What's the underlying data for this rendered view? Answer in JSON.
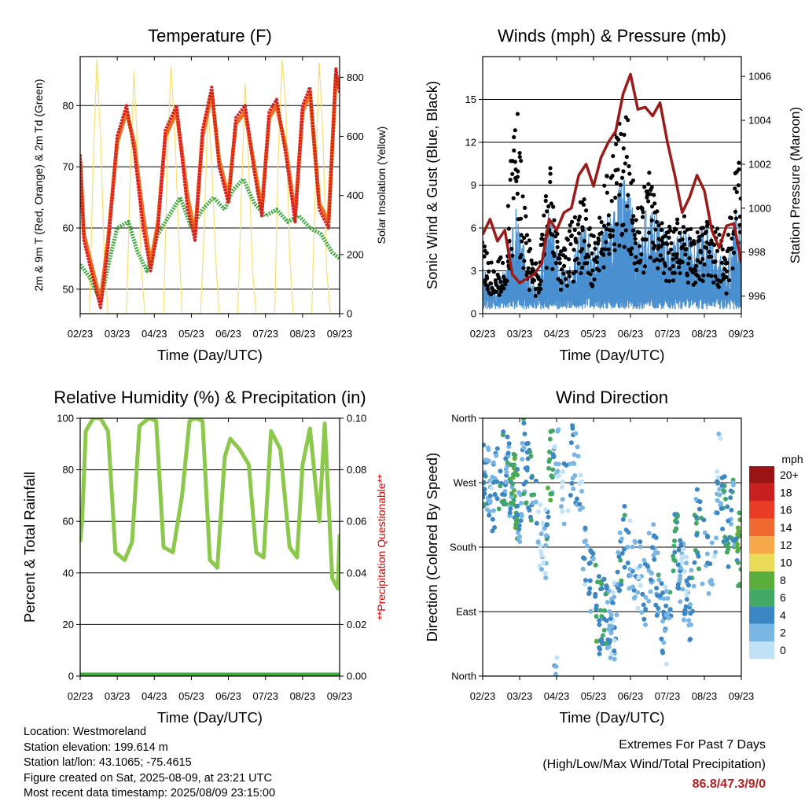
{
  "colors": {
    "temp_2m": "#d42020",
    "temp_9m": "#f07020",
    "dewpoint": "#3faa3f",
    "solar": "#f7e070",
    "wind": "#4a90d0",
    "gust": "#000000",
    "pressure": "#9b1b1b",
    "rh": "#8cc84b",
    "precip": "#3fae3f",
    "note": "#e00000"
  },
  "speed_legend": {
    "unit": "mph",
    "labels": [
      "20+",
      "18",
      "16",
      "14",
      "12",
      "10",
      "8",
      "6",
      "4",
      "2",
      "0"
    ],
    "colors": [
      "#9a1414",
      "#c82020",
      "#e83c24",
      "#f06a30",
      "#f7a848",
      "#eadc58",
      "#5cae3c",
      "#42a866",
      "#3c86c4",
      "#7ab6e4",
      "#bfe2f8"
    ]
  },
  "chart_data": [
    {
      "type": "line",
      "title": "Temperature (F)",
      "xlabel": "Time (Day/UTC)",
      "ylabel": "2m & 9m T (Red, Orange) & 2m Td (Green)",
      "y2label": "Solar Insolation (Yellow)",
      "x_ticks": [
        "02/23",
        "03/23",
        "04/23",
        "05/23",
        "06/23",
        "07/23",
        "08/23",
        "09/23"
      ],
      "y_ticks": [
        50,
        60,
        70,
        80
      ],
      "y2_ticks": [
        0,
        200,
        400,
        600,
        800
      ],
      "ylim": [
        46,
        88
      ],
      "y2lim": [
        0,
        870
      ],
      "grid": "horizontal",
      "series": [
        {
          "name": "2m T",
          "x": [
            0,
            0.1,
            0.3,
            0.55,
            0.75,
            1.0,
            1.25,
            1.45,
            1.7,
            1.9,
            2.1,
            2.3,
            2.6,
            2.9,
            3.1,
            3.3,
            3.55,
            3.75,
            4.0,
            4.2,
            4.45,
            4.7,
            4.9,
            5.1,
            5.3,
            5.55,
            5.8,
            6.0,
            6.2,
            6.45,
            6.7,
            6.9,
            7.0
          ],
          "values": [
            72,
            58,
            53,
            47,
            57,
            75,
            80,
            73,
            60,
            53,
            60,
            76,
            80,
            63,
            58,
            76,
            83,
            70,
            64,
            78,
            80,
            69,
            62,
            79,
            81,
            72,
            61,
            80,
            83,
            63,
            60,
            86,
            82
          ]
        },
        {
          "name": "9m T",
          "x": [
            0,
            0.1,
            0.3,
            0.55,
            0.75,
            1.0,
            1.25,
            1.45,
            1.7,
            1.9,
            2.1,
            2.3,
            2.6,
            2.9,
            3.1,
            3.3,
            3.55,
            3.75,
            4.0,
            4.2,
            4.45,
            4.7,
            4.9,
            5.1,
            5.3,
            5.55,
            5.8,
            6.0,
            6.2,
            6.45,
            6.7,
            6.9,
            7.0
          ],
          "values": [
            71,
            59,
            54,
            48,
            58,
            74,
            79,
            74,
            62,
            54,
            61,
            75,
            79,
            65,
            59,
            75,
            82,
            71,
            65,
            77,
            79,
            70,
            63,
            78,
            80,
            73,
            62,
            79,
            82,
            64,
            61,
            85,
            83
          ]
        },
        {
          "name": "2m Td",
          "x": [
            0,
            0.25,
            0.55,
            0.8,
            1.0,
            1.3,
            1.55,
            1.8,
            2.1,
            2.4,
            2.7,
            3.0,
            3.3,
            3.6,
            3.9,
            4.1,
            4.4,
            4.7,
            5.0,
            5.3,
            5.6,
            5.9,
            6.2,
            6.5,
            6.8,
            7.0
          ],
          "values": [
            54,
            52,
            48,
            55,
            60,
            61,
            56,
            53,
            59,
            62,
            65,
            60,
            63,
            65,
            63,
            66,
            68,
            64,
            62,
            63,
            61,
            62,
            60,
            59,
            56,
            55
          ]
        },
        {
          "name": "Solar",
          "axis": "y2",
          "x": [
            0,
            0.25,
            0.35,
            0.45,
            0.55,
            0.65,
            0.75,
            1.25,
            1.35,
            1.45,
            1.55,
            1.65,
            1.75,
            2.25,
            2.35,
            2.45,
            2.55,
            2.65,
            2.75,
            3.25,
            3.35,
            3.45,
            3.55,
            3.65,
            3.75,
            4.25,
            4.35,
            4.45,
            4.55,
            4.65,
            4.75,
            5.25,
            5.35,
            5.45,
            5.55,
            5.65,
            5.75,
            6.25,
            6.35,
            6.45,
            6.55,
            6.65,
            6.75,
            7.0
          ],
          "values": [
            0,
            0,
            500,
            860,
            600,
            200,
            0,
            0,
            450,
            820,
            550,
            150,
            0,
            0,
            500,
            840,
            620,
            300,
            0,
            0,
            300,
            700,
            500,
            200,
            0,
            0,
            400,
            780,
            500,
            150,
            0,
            0,
            550,
            860,
            700,
            200,
            0,
            0,
            450,
            850,
            600,
            150,
            0,
            0
          ]
        }
      ]
    },
    {
      "type": "line",
      "title": "Winds (mph) & Pressure (mb)",
      "xlabel": "Time (Day/UTC)",
      "ylabel": "Sonic Wind & Gust (Blue, Black)",
      "y2label": "Station Pressure (Maroon)",
      "x_ticks": [
        "02/23",
        "03/23",
        "04/23",
        "05/23",
        "06/23",
        "07/23",
        "08/23",
        "09/23"
      ],
      "y_ticks": [
        0,
        3,
        6,
        9,
        12,
        15
      ],
      "y2_ticks": [
        996,
        998,
        1000,
        1002,
        1004,
        1006
      ],
      "ylim": [
        0,
        18
      ],
      "y2lim": [
        995.2,
        1006.9
      ],
      "grid": "horizontal",
      "series": [
        {
          "name": "Wind",
          "x": [
            0,
            0.3,
            0.6,
            0.9,
            1.2,
            1.5,
            1.8,
            2.1,
            2.4,
            2.7,
            3.0,
            3.3,
            3.6,
            3.9,
            4.2,
            4.5,
            4.8,
            5.1,
            5.4,
            5.7,
            6.0,
            6.3,
            6.6,
            6.9,
            7.0
          ],
          "values": [
            2,
            1,
            2,
            5,
            2,
            1,
            5,
            2,
            2,
            4,
            3,
            4,
            5,
            6,
            3,
            5,
            4,
            3,
            4,
            3,
            4,
            3,
            2,
            5,
            3
          ]
        },
        {
          "name": "Gust",
          "x": [
            0,
            0.3,
            0.6,
            0.9,
            1.2,
            1.5,
            1.8,
            2.1,
            2.4,
            2.7,
            3.0,
            3.3,
            3.6,
            3.9,
            4.2,
            4.5,
            4.8,
            5.1,
            5.4,
            5.7,
            6.0,
            6.3,
            6.6,
            6.9,
            7.0
          ],
          "values": [
            5,
            3,
            4,
            14,
            5,
            3,
            10,
            4,
            6,
            8,
            5,
            8,
            12,
            13,
            7,
            9,
            6,
            6,
            7,
            5,
            6,
            6,
            4,
            12,
            7
          ]
        },
        {
          "name": "Pressure",
          "axis": "y2",
          "x": [
            0,
            0.2,
            0.4,
            0.6,
            0.8,
            1.0,
            1.2,
            1.4,
            1.6,
            1.8,
            2.0,
            2.2,
            2.4,
            2.6,
            2.8,
            3.0,
            3.2,
            3.4,
            3.6,
            3.8,
            4.0,
            4.2,
            4.4,
            4.6,
            4.8,
            5.0,
            5.2,
            5.4,
            5.6,
            5.8,
            6.0,
            6.2,
            6.4,
            6.6,
            6.8,
            7.0
          ],
          "values": [
            998.8,
            999.5,
            998.5,
            999.0,
            997.0,
            996.6,
            996.8,
            997.0,
            997.5,
            999.5,
            999.0,
            999.8,
            1000.0,
            1001.5,
            1002.0,
            1001.0,
            1002.3,
            1003.0,
            1003.5,
            1005.2,
            1006.1,
            1004.5,
            1004.6,
            1004.2,
            1004.8,
            1003.0,
            1001.5,
            999.8,
            1000.5,
            1001.5,
            1000.8,
            999.0,
            998.2,
            999.2,
            999.3,
            997.5
          ]
        }
      ]
    },
    {
      "type": "line",
      "title": "Relative Humidity (%) & Precipitation (in)",
      "xlabel": "Time (Day/UTC)",
      "ylabel": "Percent & Total Rainfall",
      "y2label": "**Precipitation Questionable**",
      "x_ticks": [
        "02/23",
        "03/23",
        "04/23",
        "05/23",
        "06/23",
        "07/23",
        "08/23",
        "09/23"
      ],
      "y_ticks": [
        0,
        20,
        40,
        60,
        80,
        100
      ],
      "y2_ticks": [
        "0.00",
        "0.02",
        "0.04",
        "0.06",
        "0.08",
        "0.10"
      ],
      "ylim": [
        0,
        100
      ],
      "y2lim": [
        0,
        0.1
      ],
      "grid": "horizontal",
      "series": [
        {
          "name": "RH",
          "x": [
            0,
            0.05,
            0.15,
            0.35,
            0.55,
            0.75,
            0.95,
            1.2,
            1.4,
            1.6,
            1.85,
            2.05,
            2.25,
            2.5,
            2.75,
            2.95,
            3.1,
            3.3,
            3.5,
            3.7,
            3.9,
            4.05,
            4.3,
            4.55,
            4.75,
            4.95,
            5.15,
            5.4,
            5.65,
            5.85,
            6.0,
            6.2,
            6.45,
            6.6,
            6.8,
            6.95,
            7.0
          ],
          "values": [
            52,
            60,
            95,
            100,
            100,
            95,
            48,
            45,
            52,
            97,
            100,
            99,
            50,
            48,
            70,
            99,
            100,
            99,
            45,
            42,
            85,
            92,
            88,
            82,
            48,
            46,
            95,
            88,
            50,
            46,
            82,
            96,
            60,
            98,
            38,
            34,
            55
          ]
        },
        {
          "name": "Precipitation",
          "axis": "y2",
          "x": [
            0,
            7.0
          ],
          "values": [
            0,
            0
          ]
        }
      ]
    },
    {
      "type": "scatter",
      "title": "Wind Direction",
      "xlabel": "Time (Day/UTC)",
      "ylabel": "Direction (Colored By Speed)",
      "x_ticks": [
        "02/23",
        "03/23",
        "04/23",
        "05/23",
        "06/23",
        "07/23",
        "08/23",
        "09/23"
      ],
      "y_ticks": [
        "North",
        "East",
        "South",
        "West",
        "North"
      ],
      "ylim": [
        0,
        360
      ],
      "grid": "horizontal",
      "series": [
        {
          "name": "Direction",
          "x": [
            0.1,
            0.3,
            0.5,
            0.7,
            0.9,
            1.0,
            1.1,
            1.3,
            1.5,
            1.7,
            1.8,
            2.0,
            2.2,
            2.4,
            2.6,
            2.8,
            3.0,
            3.1,
            3.2,
            3.4,
            3.5,
            3.6,
            3.8,
            4.0,
            4.2,
            4.4,
            4.6,
            4.8,
            5.0,
            5.2,
            5.4,
            5.6,
            5.8,
            6.0,
            6.2,
            6.4,
            6.6,
            6.8,
            6.9
          ],
          "values": [
            270,
            250,
            300,
            280,
            260,
            220,
            310,
            270,
            200,
            180,
            290,
            340,
            260,
            300,
            280,
            150,
            120,
            90,
            80,
            95,
            60,
            85,
            200,
            170,
            150,
            120,
            180,
            100,
            60,
            200,
            140,
            90,
            210,
            170,
            130,
            300,
            200,
            230,
            180
          ],
          "speeds": [
            4,
            2,
            6,
            3,
            7,
            2,
            4,
            6,
            1,
            2,
            7,
            1,
            2,
            3,
            2,
            3,
            4,
            6,
            5,
            4,
            2,
            3,
            5,
            3,
            2,
            4,
            3,
            4,
            2,
            6,
            2,
            3,
            5,
            4,
            3,
            2,
            5,
            4,
            7
          ]
        }
      ]
    }
  ],
  "footer": {
    "location": "Location: Westmoreland",
    "elevation": "Station elevation: 199.614 m",
    "latlon": "Station lat/lon: 43.1065; -75.4615",
    "created": "Figure created on Sat, 2025-08-09, at 23:21 UTC",
    "timestamp": "Most recent data timestamp: 2025/08/09 23:15:00",
    "extremes_title": "Extremes For Past 7 Days",
    "extremes_subtitle": "(High/Low/Max Wind/Total Precipitation)",
    "extremes_values": "86.8/47.3/9/0"
  }
}
